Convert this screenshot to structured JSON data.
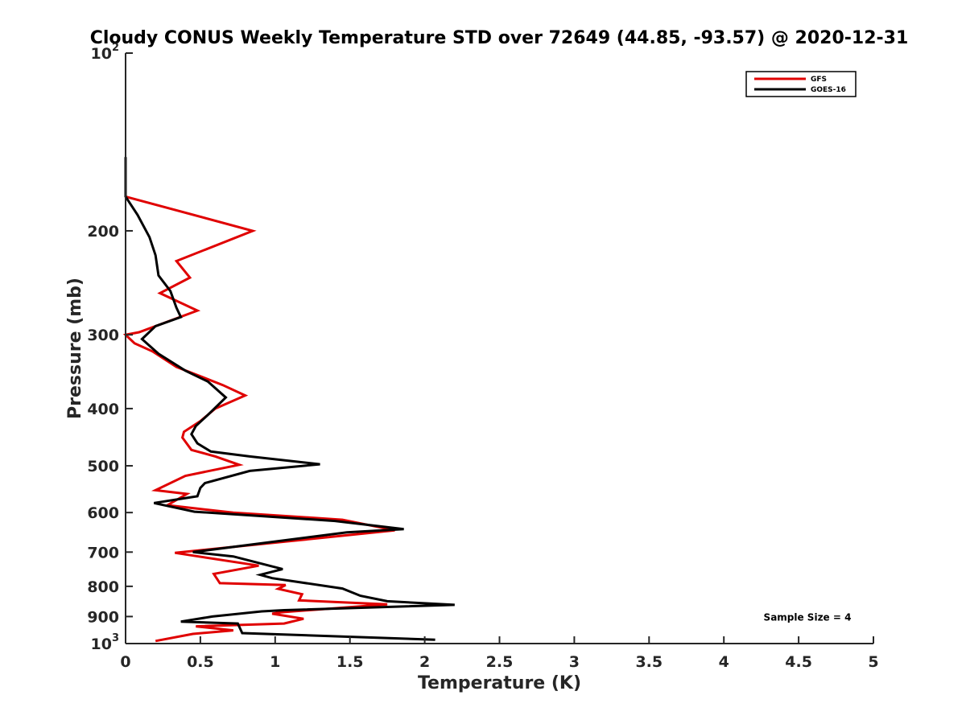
{
  "chart_data": {
    "type": "line",
    "title": "Cloudy CONUS Weekly Temperature STD over 72649 (44.85, -93.57) @ 2020-12-31",
    "xlabel": "Temperature (K)",
    "ylabel": "Pressure (mb)",
    "xlim": [
      0,
      5
    ],
    "ylim": [
      100,
      1000
    ],
    "y_scale": "log",
    "y_reversed": true,
    "grid": false,
    "legend_position": "top-right",
    "x_ticks": [
      0,
      0.5,
      1,
      1.5,
      2,
      2.5,
      3,
      3.5,
      4,
      4.5,
      5
    ],
    "x_tick_labels": [
      "0",
      "0.5",
      "1",
      "1.5",
      "2",
      "2.5",
      "3",
      "3.5",
      "4",
      "4.5",
      "5"
    ],
    "y_ticks": [
      100,
      200,
      300,
      400,
      500,
      600,
      700,
      800,
      900,
      1000
    ],
    "y_tick_labels": [
      {
        "base": "10",
        "exp": "2"
      },
      {
        "base": "200",
        "exp": ""
      },
      {
        "base": "300",
        "exp": ""
      },
      {
        "base": "400",
        "exp": ""
      },
      {
        "base": "500",
        "exp": ""
      },
      {
        "base": "600",
        "exp": ""
      },
      {
        "base": "700",
        "exp": ""
      },
      {
        "base": "800",
        "exp": ""
      },
      {
        "base": "900",
        "exp": ""
      },
      {
        "base": "10",
        "exp": "3"
      }
    ],
    "annotation": "Sample Size = 4",
    "series": [
      {
        "name": "GFS",
        "color": "#e00000",
        "points": [
          [
            0.0,
            175
          ],
          [
            0.85,
            200
          ],
          [
            0.34,
            225
          ],
          [
            0.43,
            240
          ],
          [
            0.23,
            255
          ],
          [
            0.48,
            273
          ],
          [
            0.09,
            297
          ],
          [
            0.0,
            300
          ],
          [
            0.06,
            310
          ],
          [
            0.18,
            320
          ],
          [
            0.34,
            340
          ],
          [
            0.65,
            365
          ],
          [
            0.8,
            380
          ],
          [
            0.6,
            400
          ],
          [
            0.5,
            420
          ],
          [
            0.39,
            438
          ],
          [
            0.38,
            448
          ],
          [
            0.44,
            470
          ],
          [
            0.6,
            482
          ],
          [
            0.76,
            498
          ],
          [
            0.4,
            520
          ],
          [
            0.2,
            550
          ],
          [
            0.41,
            558
          ],
          [
            0.28,
            583
          ],
          [
            0.48,
            591
          ],
          [
            0.72,
            600
          ],
          [
            1.45,
            617
          ],
          [
            1.8,
            643
          ],
          [
            1.12,
            670
          ],
          [
            0.33,
            702
          ],
          [
            0.89,
            738
          ],
          [
            0.59,
            762
          ],
          [
            0.63,
            790
          ],
          [
            1.07,
            796
          ],
          [
            1.02,
            808
          ],
          [
            1.18,
            825
          ],
          [
            1.16,
            845
          ],
          [
            1.75,
            858
          ],
          [
            1.04,
            885
          ],
          [
            0.98,
            890
          ],
          [
            1.19,
            908
          ],
          [
            1.06,
            925
          ],
          [
            0.47,
            935
          ],
          [
            0.72,
            950
          ],
          [
            0.45,
            963
          ],
          [
            0.2,
            990
          ]
        ]
      },
      {
        "name": "GOES-16",
        "color": "#000000",
        "points": [
          [
            0.0,
            150
          ],
          [
            0.0,
            175
          ],
          [
            0.08,
            188
          ],
          [
            0.16,
            205
          ],
          [
            0.2,
            220
          ],
          [
            0.22,
            238
          ],
          [
            0.3,
            253
          ],
          [
            0.34,
            270
          ],
          [
            0.37,
            280
          ],
          [
            0.2,
            290
          ],
          [
            0.11,
            305
          ],
          [
            0.22,
            323
          ],
          [
            0.4,
            345
          ],
          [
            0.55,
            360
          ],
          [
            0.67,
            383
          ],
          [
            0.55,
            410
          ],
          [
            0.47,
            428
          ],
          [
            0.44,
            442
          ],
          [
            0.48,
            458
          ],
          [
            0.57,
            473
          ],
          [
            0.83,
            482
          ],
          [
            1.3,
            497
          ],
          [
            0.83,
            510
          ],
          [
            0.53,
            535
          ],
          [
            0.5,
            545
          ],
          [
            0.48,
            563
          ],
          [
            0.19,
            578
          ],
          [
            0.46,
            598
          ],
          [
            1.4,
            620
          ],
          [
            1.86,
            640
          ],
          [
            1.48,
            648
          ],
          [
            0.45,
            700
          ],
          [
            0.72,
            712
          ],
          [
            1.05,
            748
          ],
          [
            0.9,
            765
          ],
          [
            0.98,
            775
          ],
          [
            1.45,
            807
          ],
          [
            1.57,
            830
          ],
          [
            1.75,
            848
          ],
          [
            2.2,
            860
          ],
          [
            1.06,
            878
          ],
          [
            0.91,
            882
          ],
          [
            0.58,
            900
          ],
          [
            0.37,
            918
          ],
          [
            0.75,
            925
          ],
          [
            0.78,
            960
          ],
          [
            2.07,
            985
          ]
        ]
      }
    ]
  }
}
